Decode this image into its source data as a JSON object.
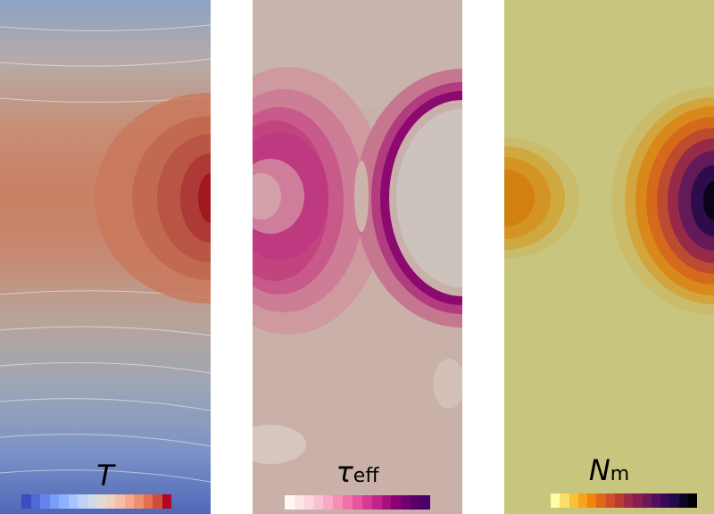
{
  "panels": [
    {
      "id": "temperature",
      "label": {
        "main": "T",
        "sub": ""
      },
      "colorbar": [
        "#3b4cc0",
        "#4f69d9",
        "#6485ec",
        "#7a9df8",
        "#90b2fe",
        "#a7c5fe",
        "#bcd2f7",
        "#d0dae9",
        "#e0dbd8",
        "#eed0c0",
        "#f6bea4",
        "#f7a889",
        "#f08e6d",
        "#e36f53",
        "#d24b3c",
        "#b40426"
      ],
      "colors": {
        "far": "#5a78be",
        "mid": "#a6a8b0",
        "warm": "#cc7a60",
        "hot": "#b01828"
      }
    },
    {
      "id": "effective-stress",
      "label": {
        "main": "τ",
        "sub": "eff"
      },
      "colorbar": [
        "#fff7f3",
        "#fde6e6",
        "#fcd5dc",
        "#fbc1d2",
        "#f9a9c4",
        "#f68fb5",
        "#f072a8",
        "#e4569d",
        "#d53b92",
        "#c12489",
        "#a6107f",
        "#8a0177",
        "#6f016f",
        "#560067",
        "#49006a"
      ],
      "colors": {
        "base": "#c9b4ab",
        "ring": "#7a0060",
        "inner": "#c8c0b8",
        "left": "#c63a84"
      }
    },
    {
      "id": "melt-number",
      "label": {
        "main": "N",
        "sub": "m"
      },
      "colorbar": [
        "#fcffa4",
        "#f8e06a",
        "#f9c135",
        "#f7a21b",
        "#f1840b",
        "#e3651c",
        "#d04d29",
        "#b93a37",
        "#a02a46",
        "#872050",
        "#6e1957",
        "#54115b",
        "#3a0a59",
        "#210c4a",
        "#0c0626",
        "#000004"
      ],
      "colors": {
        "base": "#c8c57e",
        "orange": "#d07d10",
        "dark": "#140a20"
      }
    }
  ]
}
